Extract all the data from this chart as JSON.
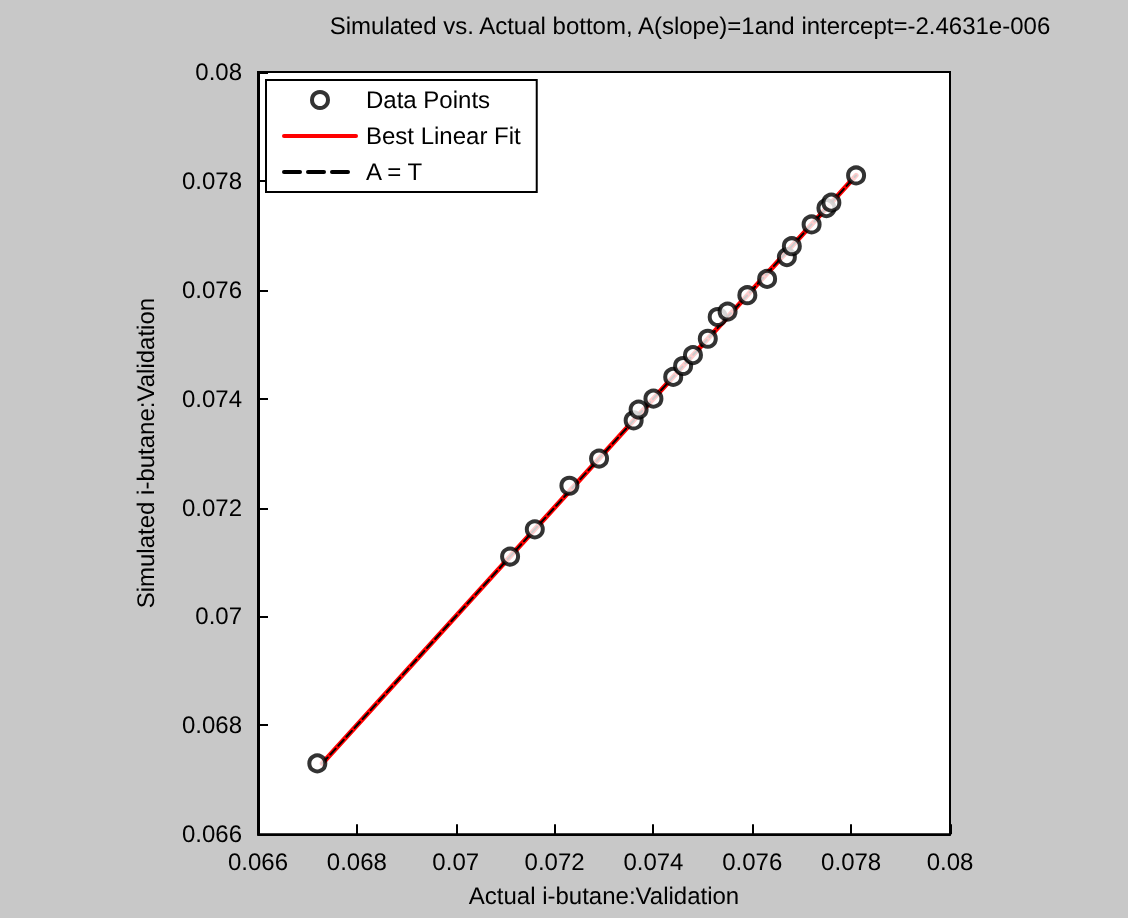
{
  "chart_data": {
    "type": "scatter",
    "title": "Simulated vs. Actual bottom, A(slope)=1and intercept=-2.4631e-006",
    "xlabel": "Actual i-butane:Validation",
    "ylabel": "Simulated i-butane:Validation",
    "xlim": [
      0.066,
      0.08
    ],
    "ylim": [
      0.066,
      0.08
    ],
    "xticks": [
      0.066,
      0.068,
      0.07,
      0.072,
      0.074,
      0.076,
      0.078,
      0.08
    ],
    "yticks": [
      0.066,
      0.068,
      0.07,
      0.072,
      0.074,
      0.076,
      0.078,
      0.08
    ],
    "grid": false,
    "legend": "top left",
    "series": [
      {
        "name": "Data Points",
        "type": "scatter",
        "marker": "circle",
        "color": "#000000",
        "x": [
          0.0672,
          0.0711,
          0.0716,
          0.0723,
          0.0729,
          0.0736,
          0.0737,
          0.074,
          0.0744,
          0.0746,
          0.0748,
          0.0751,
          0.0753,
          0.0755,
          0.0759,
          0.0763,
          0.0767,
          0.0768,
          0.0772,
          0.0775,
          0.0776,
          0.0781
        ],
        "values": [
          0.0673,
          0.0711,
          0.0716,
          0.0724,
          0.0729,
          0.0736,
          0.0738,
          0.074,
          0.0744,
          0.0746,
          0.0748,
          0.0751,
          0.0755,
          0.0756,
          0.0759,
          0.0762,
          0.0766,
          0.0768,
          0.0772,
          0.0775,
          0.0776,
          0.0781
        ]
      },
      {
        "name": "Best Linear Fit",
        "type": "line",
        "marker": "none",
        "line_style": "solid",
        "color": "#ff0000",
        "x": [
          0.0673,
          0.0781
        ],
        "values": [
          0.0673,
          0.0781
        ]
      },
      {
        "name": "A = T",
        "type": "line",
        "marker": "none",
        "line_style": "dashed",
        "color": "#000000",
        "x": [
          0.0673,
          0.0781
        ],
        "values": [
          0.0673,
          0.0781
        ]
      }
    ]
  }
}
